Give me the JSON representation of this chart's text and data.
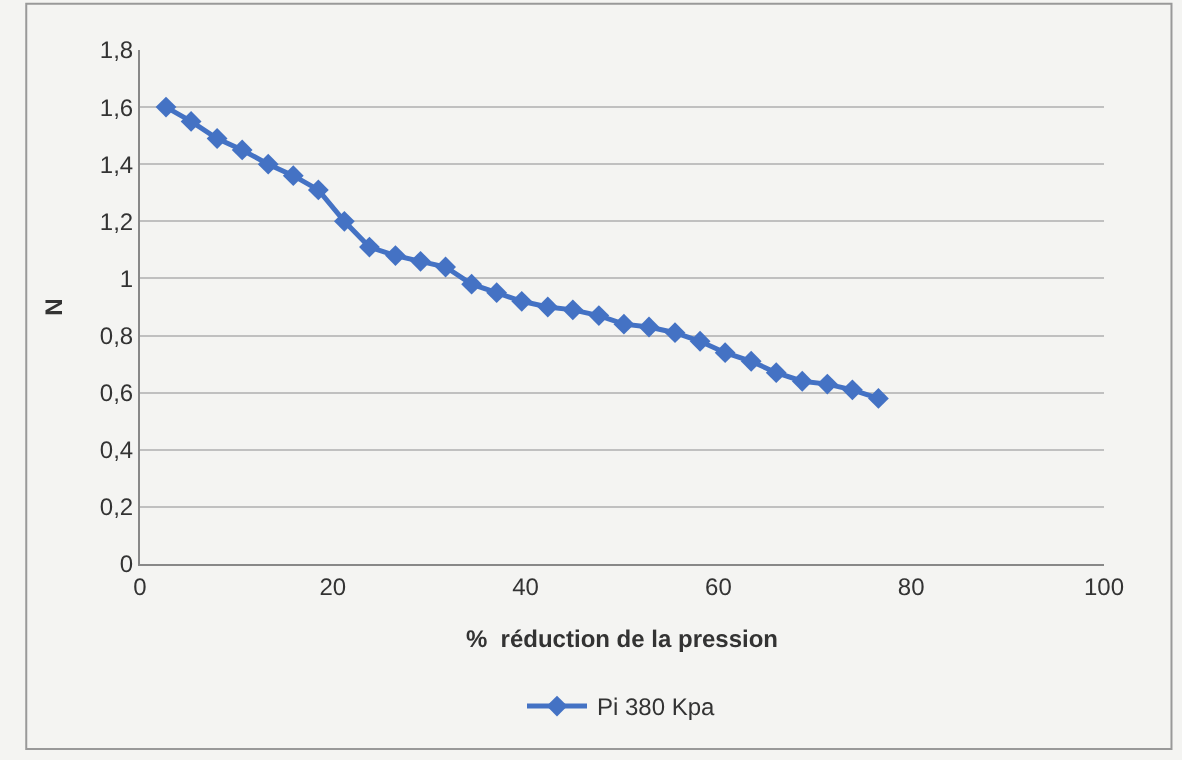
{
  "chart_data": {
    "type": "line",
    "xlabel": "%  réduction de la pression",
    "ylabel": "N",
    "x": [
      2.7,
      5.3,
      8.0,
      10.6,
      13.3,
      15.9,
      18.5,
      21.2,
      23.8,
      26.5,
      29.1,
      31.7,
      34.4,
      37.0,
      39.6,
      42.3,
      44.9,
      47.6,
      50.2,
      52.8,
      55.5,
      58.1,
      60.7,
      63.4,
      66.0,
      68.7,
      71.3,
      73.9,
      76.6
    ],
    "series": [
      {
        "name": "Pi 380 Kpa",
        "color": "#4472c4",
        "values": [
          1.6,
          1.55,
          1.49,
          1.45,
          1.4,
          1.36,
          1.31,
          1.2,
          1.11,
          1.08,
          1.06,
          1.04,
          0.98,
          0.95,
          0.92,
          0.9,
          0.89,
          0.87,
          0.84,
          0.83,
          0.81,
          0.78,
          0.74,
          0.71,
          0.67,
          0.64,
          0.63,
          0.61,
          0.58
        ]
      }
    ],
    "xlim": [
      0,
      100
    ],
    "xticks": [
      0,
      20,
      40,
      60,
      80,
      100
    ],
    "ylim": [
      0,
      1.8
    ],
    "yticks": [
      0,
      {
        "value": 0.2,
        "label": "0,2"
      },
      {
        "value": 0.4,
        "label": "0,4"
      },
      {
        "value": 0.6,
        "label": "0,6"
      },
      {
        "value": 0.8,
        "label": "0,8"
      },
      1,
      {
        "value": 1.2,
        "label": "1,2"
      },
      {
        "value": 1.4,
        "label": "1,4"
      },
      {
        "value": 1.6,
        "label": "1,6"
      },
      {
        "value": 1.8,
        "label": "1,8"
      }
    ],
    "grid": "y",
    "legend": "bottom",
    "marker": "diamond",
    "line_style": "solid"
  }
}
